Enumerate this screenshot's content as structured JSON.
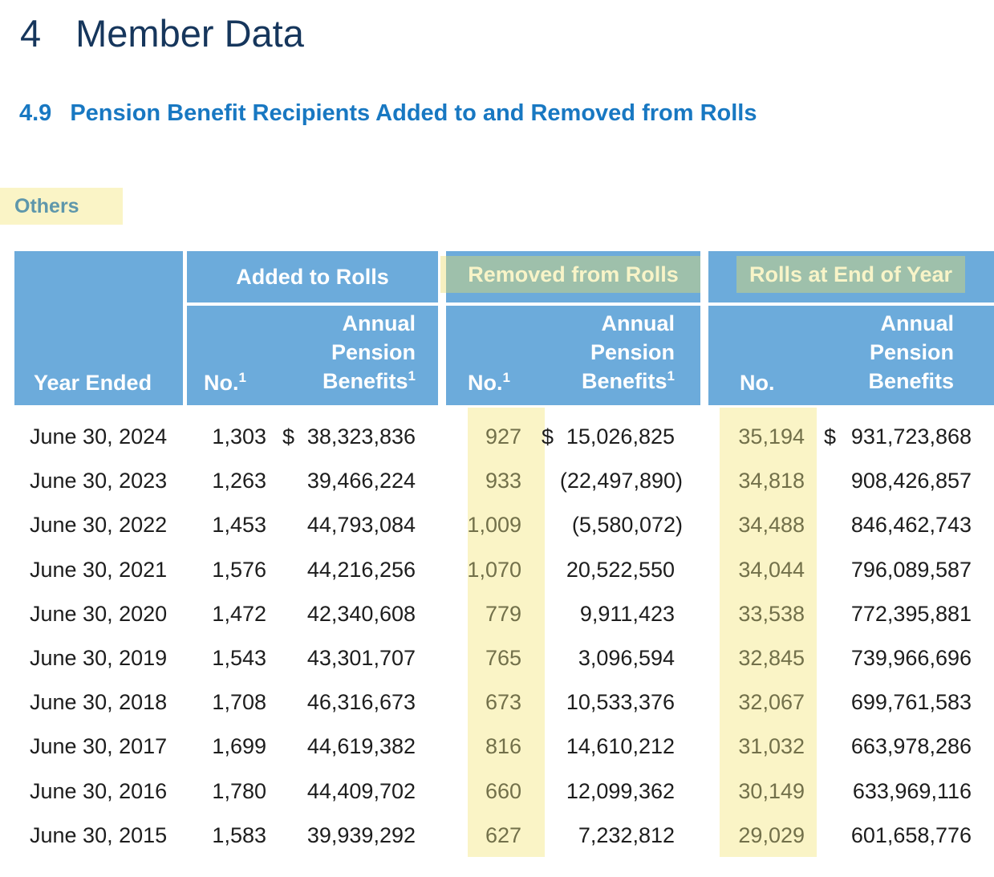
{
  "document": {
    "chapter_number": "4",
    "chapter_title": "Member Data",
    "section_number": "4.9",
    "section_title": "Pension Benefit Recipients Added to and Removed from Rolls",
    "note_label": "Others"
  },
  "table": {
    "corner_header": "Year Ended",
    "currency_symbol": "$",
    "groups": [
      {
        "label": "Added to Rolls",
        "highlighted": false,
        "no_label": "No.",
        "no_sup": "1",
        "benefits_lines": [
          "Annual",
          "Pension",
          "Benefits"
        ],
        "benefits_sup": "1"
      },
      {
        "label": "Removed from Rolls",
        "highlighted": true,
        "no_label": "No.",
        "no_sup": "1",
        "benefits_lines": [
          "Annual",
          "Pension",
          "Benefits"
        ],
        "benefits_sup": "1"
      },
      {
        "label": "Rolls at End of Year",
        "highlighted": true,
        "no_label": "No.",
        "no_sup": "",
        "benefits_lines": [
          "Annual",
          "Pension",
          "Benefits"
        ],
        "benefits_sup": ""
      }
    ],
    "rows": [
      {
        "year_ended": "June 30, 2024",
        "added_no": "1,303",
        "added_benefits": "38,323,836",
        "removed_no": "927",
        "removed_benefits": "15,026,825",
        "rolls_no": "35,194",
        "rolls_benefits": "931,723,868",
        "show_dollar": true
      },
      {
        "year_ended": "June 30, 2023",
        "added_no": "1,263",
        "added_benefits": "39,466,224",
        "removed_no": "933",
        "removed_benefits": "(22,497,890)",
        "rolls_no": "34,818",
        "rolls_benefits": "908,426,857",
        "show_dollar": false
      },
      {
        "year_ended": "June 30, 2022",
        "added_no": "1,453",
        "added_benefits": "44,793,084",
        "removed_no": "1,009",
        "removed_benefits": "(5,580,072)",
        "rolls_no": "34,488",
        "rolls_benefits": "846,462,743",
        "show_dollar": false
      },
      {
        "year_ended": "June 30, 2021",
        "added_no": "1,576",
        "added_benefits": "44,216,256",
        "removed_no": "1,070",
        "removed_benefits": "20,522,550",
        "rolls_no": "34,044",
        "rolls_benefits": "796,089,587",
        "show_dollar": false
      },
      {
        "year_ended": "June 30, 2020",
        "added_no": "1,472",
        "added_benefits": "42,340,608",
        "removed_no": "779",
        "removed_benefits": "9,911,423",
        "rolls_no": "33,538",
        "rolls_benefits": "772,395,881",
        "show_dollar": false
      },
      {
        "year_ended": "June 30, 2019",
        "added_no": "1,543",
        "added_benefits": "43,301,707",
        "removed_no": "765",
        "removed_benefits": "3,096,594",
        "rolls_no": "32,845",
        "rolls_benefits": "739,966,696",
        "show_dollar": false
      },
      {
        "year_ended": "June 30, 2018",
        "added_no": "1,708",
        "added_benefits": "46,316,673",
        "removed_no": "673",
        "removed_benefits": "10,533,376",
        "rolls_no": "32,067",
        "rolls_benefits": "699,761,583",
        "show_dollar": false
      },
      {
        "year_ended": "June 30, 2017",
        "added_no": "1,699",
        "added_benefits": "44,619,382",
        "removed_no": "816",
        "removed_benefits": "14,610,212",
        "rolls_no": "31,032",
        "rolls_benefits": "663,978,286",
        "show_dollar": false
      },
      {
        "year_ended": "June 30, 2016",
        "added_no": "1,780",
        "added_benefits": "44,409,702",
        "removed_no": "660",
        "removed_benefits": "12,099,362",
        "rolls_no": "30,149",
        "rolls_benefits": "633,969,116",
        "show_dollar": false
      },
      {
        "year_ended": "June 30, 2015",
        "added_no": "1,583",
        "added_benefits": "39,939,292",
        "removed_no": "627",
        "removed_benefits": "7,232,812",
        "rolls_no": "29,029",
        "rolls_benefits": "601,658,776",
        "show_dollar": false
      }
    ]
  },
  "colors": {
    "chapter_navy": "#16365c",
    "section_blue": "#1878c2",
    "note_teal": "#5e97ab",
    "highlight_yellow": "#faf4c6",
    "highlight_yellow_sliver": "#f6f0c0",
    "header_blue": "#6cabdb",
    "highlight_green": "#9ec0ab",
    "highlight_text_pale_yellow": "#f8f4c8",
    "body_text": "#1d1d1d",
    "highlighted_number_olive": "#72704a"
  }
}
